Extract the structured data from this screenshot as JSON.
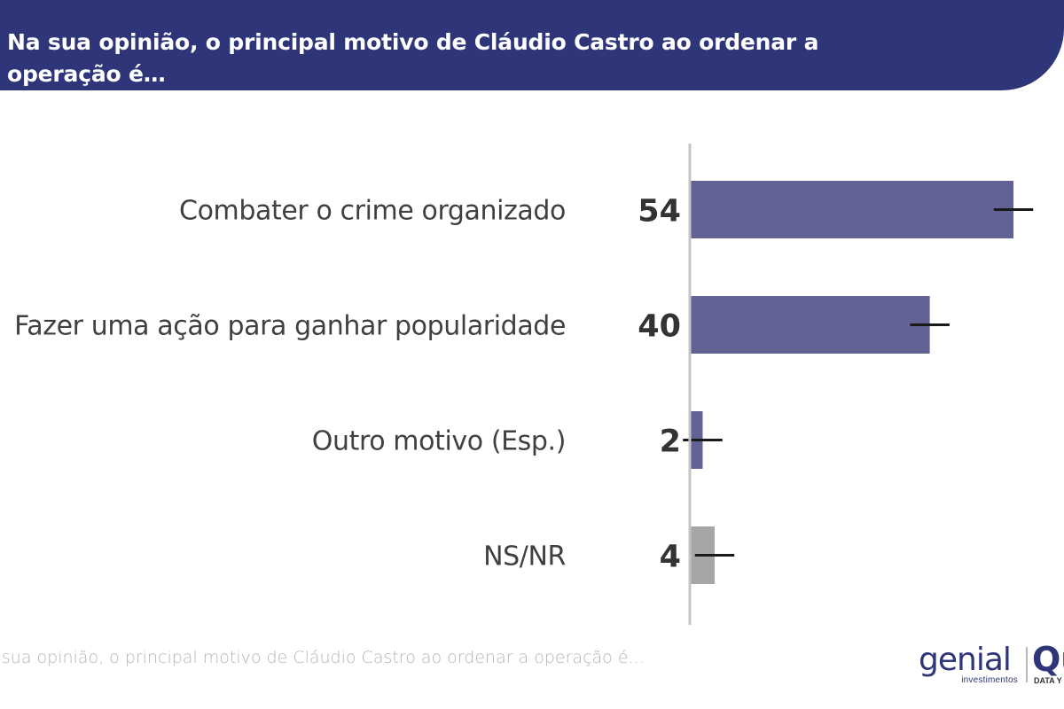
{
  "header": {
    "title": "Na sua opinião, o principal motivo de Cláudio Castro ao ordenar a operação é…"
  },
  "chart_data": {
    "type": "bar",
    "orientation": "horizontal",
    "title": "Na sua opinião, o principal motivo de Cláudio Castro ao ordenar a operação é…",
    "categories": [
      "Combater o crime organizado",
      "Fazer uma ação para ganhar popularidade",
      "Outro motivo (Esp.)",
      "NS/NR"
    ],
    "values": [
      54,
      40,
      2,
      4
    ],
    "data_labels": [
      "54",
      "40",
      "2",
      "4"
    ],
    "bar_colors": [
      "#636294",
      "#636294",
      "#636294",
      "#a6a6a6"
    ],
    "error_bar_color": "#1a1a1a",
    "axis_color": "#c4c4c4",
    "xlim": [
      0,
      62
    ],
    "error_margin": 3.3,
    "xlabel": "",
    "ylabel": "",
    "grid": false
  },
  "footer": {
    "question_text": "Na sua opinião, o principal motivo de Cláudio Castro ao ordenar a operação é…"
  },
  "brand": {
    "logo_text": "genial",
    "logo_sub": "investimentos",
    "partner_mark": "Qu",
    "partner_sub": "DATA Y"
  }
}
